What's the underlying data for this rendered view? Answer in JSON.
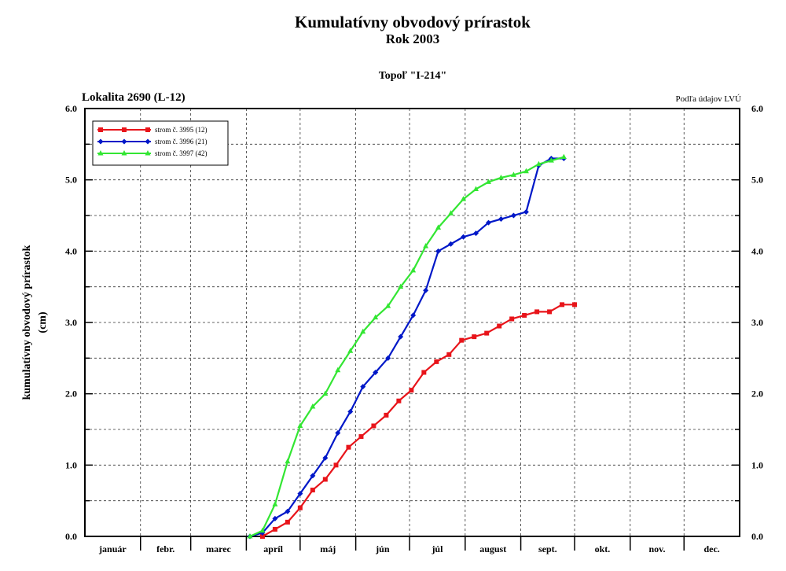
{
  "chart_data": {
    "type": "line",
    "title": "Kumulatívny obvodový prírastok",
    "subtitle": "Rok 2003",
    "species": "Topoľ \"I-214\"",
    "location": "Lokalita 2690 (L-12)",
    "source": "Podľa údajov LVÚ",
    "ylabel": "kumulatívny obvodový prírastok",
    "ylabel_unit": "(cm)",
    "ylim": [
      0,
      6
    ],
    "y_ticks": [
      "0.0",
      "1.0",
      "2.0",
      "3.0",
      "4.0",
      "5.0",
      "6.0"
    ],
    "xlim_days": [
      0,
      365
    ],
    "months": [
      "január",
      "febr.",
      "marec",
      "apríl",
      "máj",
      "jún",
      "júl",
      "august",
      "sept.",
      "okt.",
      "nov.",
      "dec."
    ],
    "grid": true,
    "legend_position": "top-left",
    "series": [
      {
        "name": "strom č. 3995 (12)",
        "color": "#e8141a",
        "marker": "square",
        "x": [
          "2003-04-10",
          "2003-04-17",
          "2003-04-24",
          "2003-05-01",
          "2003-05-08",
          "2003-05-15",
          "2003-05-21",
          "2003-05-28",
          "2003-06-04",
          "2003-06-11",
          "2003-06-18",
          "2003-06-25",
          "2003-07-02",
          "2003-07-09",
          "2003-07-16",
          "2003-07-23",
          "2003-07-30",
          "2003-08-06",
          "2003-08-13",
          "2003-08-20",
          "2003-08-27",
          "2003-09-03",
          "2003-09-10",
          "2003-09-17",
          "2003-09-24",
          "2003-10-01"
        ],
        "y": [
          0.0,
          0.1,
          0.2,
          0.4,
          0.65,
          0.8,
          1.0,
          1.25,
          1.4,
          1.55,
          1.7,
          1.9,
          2.05,
          2.3,
          2.45,
          2.55,
          2.75,
          2.8,
          2.85,
          2.95,
          3.05,
          3.1,
          3.15,
          3.15,
          3.25,
          3.25
        ]
      },
      {
        "name": "strom č. 3996 (21)",
        "color": "#0018c8",
        "marker": "diamond",
        "x": [
          "2003-04-03",
          "2003-04-10",
          "2003-04-17",
          "2003-04-24",
          "2003-05-01",
          "2003-05-08",
          "2003-05-15",
          "2003-05-22",
          "2003-05-29",
          "2003-06-05",
          "2003-06-12",
          "2003-06-19",
          "2003-06-26",
          "2003-07-03",
          "2003-07-10",
          "2003-07-17",
          "2003-07-24",
          "2003-07-31",
          "2003-08-07",
          "2003-08-14",
          "2003-08-21",
          "2003-08-28",
          "2003-09-04",
          "2003-09-11",
          "2003-09-18",
          "2003-09-25"
        ],
        "y": [
          0.0,
          0.05,
          0.25,
          0.35,
          0.6,
          0.85,
          1.1,
          1.45,
          1.75,
          2.1,
          2.3,
          2.5,
          2.8,
          3.1,
          3.45,
          4.0,
          4.1,
          4.2,
          4.25,
          4.4,
          4.45,
          4.5,
          4.55,
          5.2,
          5.3,
          5.3
        ]
      },
      {
        "name": "strom č. 3997 (42)",
        "color": "#33e633",
        "marker": "triangle",
        "x": [
          "2003-04-03",
          "2003-04-10",
          "2003-04-17",
          "2003-04-24",
          "2003-05-01",
          "2003-05-08",
          "2003-05-15",
          "2003-05-22",
          "2003-05-29",
          "2003-06-05",
          "2003-06-12",
          "2003-06-19",
          "2003-06-26",
          "2003-07-03",
          "2003-07-10",
          "2003-07-17",
          "2003-07-24",
          "2003-07-31",
          "2003-08-07",
          "2003-08-14",
          "2003-08-21",
          "2003-08-28",
          "2003-09-04",
          "2003-09-11",
          "2003-09-18",
          "2003-09-25"
        ],
        "y": [
          0.0,
          0.08,
          0.45,
          1.05,
          1.55,
          1.82,
          2.0,
          2.33,
          2.6,
          2.87,
          3.07,
          3.23,
          3.5,
          3.73,
          4.07,
          4.33,
          4.53,
          4.73,
          4.87,
          4.97,
          5.03,
          5.07,
          5.12,
          5.22,
          5.27,
          5.32
        ]
      }
    ]
  }
}
